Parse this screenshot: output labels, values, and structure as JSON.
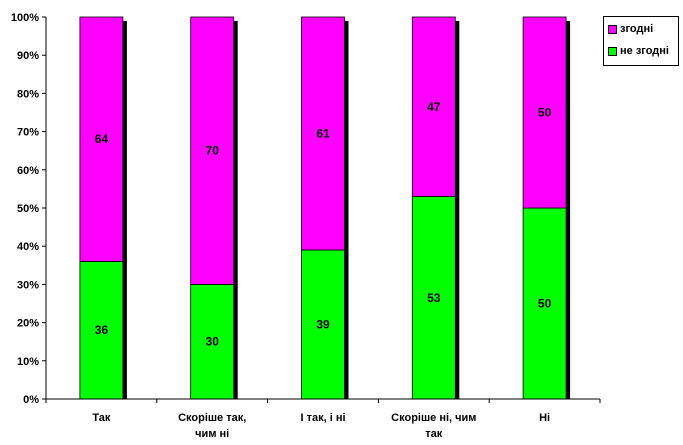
{
  "chart_data": {
    "type": "bar",
    "stacked": true,
    "percent_stacked": true,
    "categories": [
      [
        "Так"
      ],
      [
        "Скоріше так,",
        "чим ні"
      ],
      [
        "І так, і ні"
      ],
      [
        "Скоріше ні, чим",
        "так"
      ],
      [
        "Ні"
      ]
    ],
    "series": [
      {
        "name": "не згодні",
        "values": [
          36,
          30,
          39,
          53,
          50
        ],
        "color": "#00ff00"
      },
      {
        "name": "згодні",
        "values": [
          64,
          70,
          61,
          47,
          50
        ],
        "color": "#ff00ff"
      }
    ],
    "yticks": [
      "0%",
      "10%",
      "20%",
      "30%",
      "40%",
      "50%",
      "60%",
      "70%",
      "80%",
      "90%",
      "100%"
    ],
    "ylim": [
      0,
      100
    ],
    "grid": false,
    "legend": {
      "placement": "top-right",
      "entries": [
        {
          "label": "згодні",
          "color": "#ff00ff"
        },
        {
          "label": "не згодні",
          "color": "#00ff00"
        }
      ]
    }
  }
}
